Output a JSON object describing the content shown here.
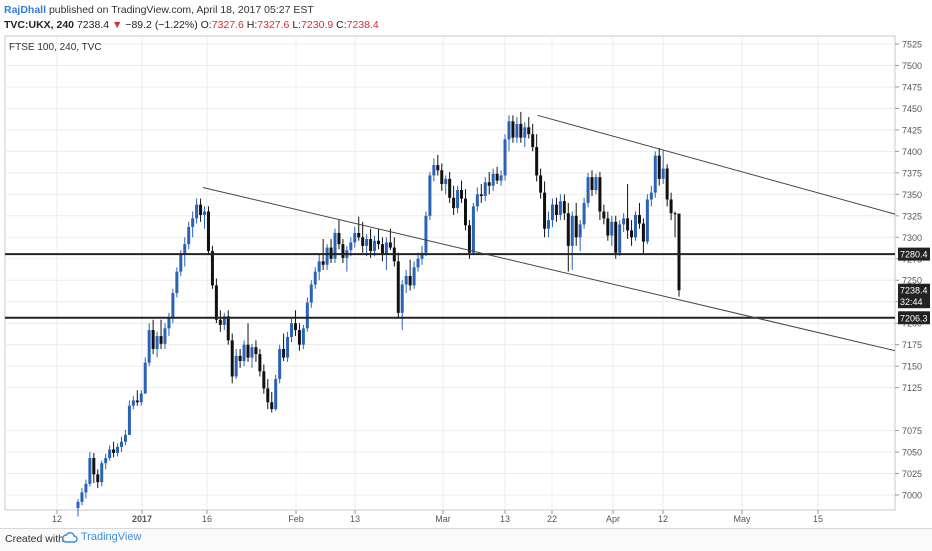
{
  "header": {
    "author": "RajDhall",
    "published": "published on TradingView.com, April 18, 2017 05:27 EST"
  },
  "quote": {
    "symbol": "TVC:UKX, 240",
    "last": "7238.4",
    "change": "−89.2 (−1.22%)",
    "open_label": "O:",
    "open": "7327.6",
    "high_label": "H:",
    "high": "7327.6",
    "low_label": "L:",
    "low": "7230.9",
    "close_label": "C:",
    "close": "7238.4"
  },
  "chart_title": "FTSE 100, 240, TVC",
  "footer": {
    "created_with": "Created with",
    "brand": "TradingView"
  },
  "colors": {
    "up": "#2a62b8",
    "down": "#111111",
    "line": "#222222",
    "label_bg": "#222222"
  },
  "chart_data": {
    "type": "candlestick",
    "title": "FTSE 100, 240, TVC",
    "ylim": [
      6988,
      7537
    ],
    "y_ticks": [
      7000,
      7025,
      7050,
      7075,
      7125,
      7150,
      7175,
      7200,
      7225,
      7250,
      7275,
      7300,
      7325,
      7350,
      7375,
      7400,
      7425,
      7450,
      7475,
      7500,
      7525
    ],
    "x_ticks": [
      "12",
      "2017",
      "16",
      "Feb",
      "13",
      "Mar",
      "13",
      "22",
      "Apr",
      "12",
      "May",
      "15"
    ],
    "horizontal_lines": [
      {
        "label": "7280.4",
        "value": 7280.4
      },
      {
        "label": "7206.3",
        "value": 7206.3
      }
    ],
    "price_labels": [
      {
        "label": "7238.4",
        "value": 7238.4
      },
      {
        "label": "32:44",
        "value": 7225
      }
    ],
    "trendlines": [
      {
        "from": [
          "Jan 13",
          7358
        ],
        "to": [
          "May 31",
          7168
        ]
      },
      {
        "from": [
          "Mar 20",
          7442
        ],
        "to": [
          "May 31",
          7327
        ]
      }
    ],
    "candles": [
      {
        "t": "Dec 28",
        "o": 6985,
        "h": 6995,
        "l": 6975,
        "c": 6992
      },
      {
        "t": "Dec 28",
        "o": 6992,
        "h": 7008,
        "l": 6988,
        "c": 7003
      },
      {
        "t": "Dec 29",
        "o": 7003,
        "h": 7018,
        "l": 6996,
        "c": 7013
      },
      {
        "t": "Dec 29",
        "o": 7013,
        "h": 7050,
        "l": 7010,
        "c": 7043
      },
      {
        "t": "Dec 30",
        "o": 7043,
        "h": 7049,
        "l": 7014,
        "c": 7024
      },
      {
        "t": "Dec 30",
        "o": 7024,
        "h": 7030,
        "l": 7008,
        "c": 7015
      },
      {
        "t": "Jan 2",
        "o": 7015,
        "h": 7040,
        "l": 7010,
        "c": 7037
      },
      {
        "t": "Jan 2",
        "o": 7037,
        "h": 7048,
        "l": 7030,
        "c": 7043
      },
      {
        "t": "Jan 3",
        "o": 7043,
        "h": 7058,
        "l": 7040,
        "c": 7053
      },
      {
        "t": "Jan 3",
        "o": 7053,
        "h": 7062,
        "l": 7044,
        "c": 7049
      },
      {
        "t": "Jan 4",
        "o": 7049,
        "h": 7060,
        "l": 7045,
        "c": 7056
      },
      {
        "t": "Jan 4",
        "o": 7056,
        "h": 7068,
        "l": 7050,
        "c": 7062
      },
      {
        "t": "Jan 5",
        "o": 7062,
        "h": 7076,
        "l": 7058,
        "c": 7070
      },
      {
        "t": "Jan 5",
        "o": 7070,
        "h": 7110,
        "l": 7070,
        "c": 7104
      },
      {
        "t": "Jan 6",
        "o": 7104,
        "h": 7115,
        "l": 7100,
        "c": 7110
      },
      {
        "t": "Jan 6",
        "o": 7110,
        "h": 7122,
        "l": 7104,
        "c": 7108
      },
      {
        "t": "Jan 9",
        "o": 7108,
        "h": 7122,
        "l": 7104,
        "c": 7118
      },
      {
        "t": "Jan 9",
        "o": 7118,
        "h": 7160,
        "l": 7118,
        "c": 7154
      },
      {
        "t": "Jan 10",
        "o": 7154,
        "h": 7200,
        "l": 7150,
        "c": 7192
      },
      {
        "t": "Jan 10",
        "o": 7192,
        "h": 7204,
        "l": 7164,
        "c": 7170
      },
      {
        "t": "Jan 11",
        "o": 7170,
        "h": 7190,
        "l": 7160,
        "c": 7185
      },
      {
        "t": "Jan 11",
        "o": 7185,
        "h": 7204,
        "l": 7170,
        "c": 7176
      },
      {
        "t": "Jan 12",
        "o": 7176,
        "h": 7200,
        "l": 7170,
        "c": 7194
      },
      {
        "t": "Jan 12",
        "o": 7194,
        "h": 7212,
        "l": 7185,
        "c": 7206
      },
      {
        "t": "Jan 13",
        "o": 7206,
        "h": 7240,
        "l": 7200,
        "c": 7235
      },
      {
        "t": "Jan 13",
        "o": 7235,
        "h": 7265,
        "l": 7230,
        "c": 7260
      },
      {
        "t": "Jan 16",
        "o": 7260,
        "h": 7285,
        "l": 7255,
        "c": 7280
      },
      {
        "t": "Jan 16",
        "o": 7280,
        "h": 7300,
        "l": 7266,
        "c": 7292
      },
      {
        "t": "Jan 17",
        "o": 7292,
        "h": 7318,
        "l": 7286,
        "c": 7312
      },
      {
        "t": "Jan 17",
        "o": 7312,
        "h": 7330,
        "l": 7300,
        "c": 7322
      },
      {
        "t": "Jan 18",
        "o": 7322,
        "h": 7345,
        "l": 7316,
        "c": 7338
      },
      {
        "t": "Jan 18",
        "o": 7338,
        "h": 7345,
        "l": 7318,
        "c": 7326
      },
      {
        "t": "Jan 19",
        "o": 7326,
        "h": 7336,
        "l": 7310,
        "c": 7330
      },
      {
        "t": "Jan 19",
        "o": 7330,
        "h": 7336,
        "l": 7280,
        "c": 7284
      },
      {
        "t": "Jan 20",
        "o": 7284,
        "h": 7290,
        "l": 7240,
        "c": 7244
      },
      {
        "t": "Jan 20",
        "o": 7244,
        "h": 7252,
        "l": 7200,
        "c": 7204
      },
      {
        "t": "Jan 23",
        "o": 7204,
        "h": 7215,
        "l": 7190,
        "c": 7198
      },
      {
        "t": "Jan 23",
        "o": 7198,
        "h": 7212,
        "l": 7192,
        "c": 7208
      },
      {
        "t": "Jan 24",
        "o": 7208,
        "h": 7215,
        "l": 7175,
        "c": 7180
      },
      {
        "t": "Jan 24",
        "o": 7180,
        "h": 7188,
        "l": 7130,
        "c": 7138
      },
      {
        "t": "Jan 25",
        "o": 7138,
        "h": 7170,
        "l": 7135,
        "c": 7162
      },
      {
        "t": "Jan 25",
        "o": 7162,
        "h": 7170,
        "l": 7148,
        "c": 7156
      },
      {
        "t": "Jan 26",
        "o": 7156,
        "h": 7180,
        "l": 7150,
        "c": 7175
      },
      {
        "t": "Jan 26",
        "o": 7175,
        "h": 7200,
        "l": 7155,
        "c": 7160
      },
      {
        "t": "Jan 27",
        "o": 7160,
        "h": 7176,
        "l": 7148,
        "c": 7172
      },
      {
        "t": "Jan 27",
        "o": 7172,
        "h": 7180,
        "l": 7155,
        "c": 7164
      },
      {
        "t": "Jan 30",
        "o": 7164,
        "h": 7170,
        "l": 7138,
        "c": 7144
      },
      {
        "t": "Jan 30",
        "o": 7144,
        "h": 7152,
        "l": 7118,
        "c": 7124
      },
      {
        "t": "Jan 31",
        "o": 7124,
        "h": 7135,
        "l": 7100,
        "c": 7108
      },
      {
        "t": "Jan 31",
        "o": 7108,
        "h": 7120,
        "l": 7096,
        "c": 7100
      },
      {
        "t": "Feb 1",
        "o": 7100,
        "h": 7140,
        "l": 7098,
        "c": 7135
      },
      {
        "t": "Feb 1",
        "o": 7135,
        "h": 7175,
        "l": 7130,
        "c": 7170
      },
      {
        "t": "Feb 2",
        "o": 7170,
        "h": 7188,
        "l": 7156,
        "c": 7160
      },
      {
        "t": "Feb 2",
        "o": 7160,
        "h": 7190,
        "l": 7155,
        "c": 7184
      },
      {
        "t": "Feb 3",
        "o": 7184,
        "h": 7205,
        "l": 7178,
        "c": 7200
      },
      {
        "t": "Feb 3",
        "o": 7200,
        "h": 7215,
        "l": 7185,
        "c": 7192
      },
      {
        "t": "Feb 6",
        "o": 7192,
        "h": 7200,
        "l": 7168,
        "c": 7175
      },
      {
        "t": "Feb 6",
        "o": 7175,
        "h": 7198,
        "l": 7170,
        "c": 7194
      },
      {
        "t": "Feb 7",
        "o": 7194,
        "h": 7230,
        "l": 7190,
        "c": 7224
      },
      {
        "t": "Feb 7",
        "o": 7224,
        "h": 7250,
        "l": 7218,
        "c": 7245
      },
      {
        "t": "Feb 8",
        "o": 7245,
        "h": 7265,
        "l": 7240,
        "c": 7260
      },
      {
        "t": "Feb 8",
        "o": 7260,
        "h": 7280,
        "l": 7250,
        "c": 7272
      },
      {
        "t": "Feb 9",
        "o": 7272,
        "h": 7298,
        "l": 7262,
        "c": 7268
      },
      {
        "t": "Feb 9",
        "o": 7268,
        "h": 7292,
        "l": 7262,
        "c": 7288
      },
      {
        "t": "Feb 10",
        "o": 7288,
        "h": 7298,
        "l": 7270,
        "c": 7275
      },
      {
        "t": "Feb 10",
        "o": 7275,
        "h": 7310,
        "l": 7270,
        "c": 7305
      },
      {
        "t": "Feb 13",
        "o": 7305,
        "h": 7320,
        "l": 7286,
        "c": 7292
      },
      {
        "t": "Feb 13",
        "o": 7292,
        "h": 7298,
        "l": 7270,
        "c": 7276
      },
      {
        "t": "Feb 14",
        "o": 7276,
        "h": 7290,
        "l": 7260,
        "c": 7285
      },
      {
        "t": "Feb 14",
        "o": 7285,
        "h": 7300,
        "l": 7278,
        "c": 7294
      },
      {
        "t": "Feb 15",
        "o": 7294,
        "h": 7312,
        "l": 7288,
        "c": 7305
      },
      {
        "t": "Feb 15",
        "o": 7305,
        "h": 7324,
        "l": 7296,
        "c": 7300
      },
      {
        "t": "Feb 16",
        "o": 7300,
        "h": 7318,
        "l": 7282,
        "c": 7290
      },
      {
        "t": "Feb 16",
        "o": 7290,
        "h": 7304,
        "l": 7278,
        "c": 7298
      },
      {
        "t": "Feb 17",
        "o": 7298,
        "h": 7310,
        "l": 7276,
        "c": 7284
      },
      {
        "t": "Feb 17",
        "o": 7284,
        "h": 7302,
        "l": 7278,
        "c": 7296
      },
      {
        "t": "Feb 20",
        "o": 7296,
        "h": 7310,
        "l": 7286,
        "c": 7292
      },
      {
        "t": "Feb 20",
        "o": 7292,
        "h": 7300,
        "l": 7272,
        "c": 7280
      },
      {
        "t": "Feb 21",
        "o": 7280,
        "h": 7300,
        "l": 7262,
        "c": 7294
      },
      {
        "t": "Feb 21",
        "o": 7294,
        "h": 7310,
        "l": 7285,
        "c": 7288
      },
      {
        "t": "Feb 22",
        "o": 7288,
        "h": 7300,
        "l": 7266,
        "c": 7272
      },
      {
        "t": "Feb 22",
        "o": 7272,
        "h": 7282,
        "l": 7206,
        "c": 7212
      },
      {
        "t": "Feb 23",
        "o": 7212,
        "h": 7250,
        "l": 7192,
        "c": 7245
      },
      {
        "t": "Feb 23",
        "o": 7245,
        "h": 7262,
        "l": 7235,
        "c": 7255
      },
      {
        "t": "Feb 24",
        "o": 7255,
        "h": 7274,
        "l": 7238,
        "c": 7244
      },
      {
        "t": "Feb 24",
        "o": 7244,
        "h": 7272,
        "l": 7240,
        "c": 7265
      },
      {
        "t": "Feb 27",
        "o": 7265,
        "h": 7282,
        "l": 7260,
        "c": 7275
      },
      {
        "t": "Feb 27",
        "o": 7275,
        "h": 7290,
        "l": 7268,
        "c": 7282
      },
      {
        "t": "Feb 28",
        "o": 7282,
        "h": 7330,
        "l": 7278,
        "c": 7325
      },
      {
        "t": "Feb 28",
        "o": 7325,
        "h": 7376,
        "l": 7320,
        "c": 7372
      },
      {
        "t": "Mar 1",
        "o": 7372,
        "h": 7392,
        "l": 7365,
        "c": 7384
      },
      {
        "t": "Mar 1",
        "o": 7384,
        "h": 7396,
        "l": 7372,
        "c": 7378
      },
      {
        "t": "Mar 2",
        "o": 7378,
        "h": 7386,
        "l": 7354,
        "c": 7362
      },
      {
        "t": "Mar 2",
        "o": 7362,
        "h": 7372,
        "l": 7350,
        "c": 7368
      },
      {
        "t": "Mar 3",
        "o": 7368,
        "h": 7376,
        "l": 7340,
        "c": 7346
      },
      {
        "t": "Mar 3",
        "o": 7346,
        "h": 7360,
        "l": 7326,
        "c": 7334
      },
      {
        "t": "Mar 6",
        "o": 7334,
        "h": 7360,
        "l": 7328,
        "c": 7355
      },
      {
        "t": "Mar 6",
        "o": 7355,
        "h": 7366,
        "l": 7340,
        "c": 7345
      },
      {
        "t": "Mar 7",
        "o": 7345,
        "h": 7356,
        "l": 7308,
        "c": 7314
      },
      {
        "t": "Mar 7",
        "o": 7314,
        "h": 7320,
        "l": 7275,
        "c": 7282
      },
      {
        "t": "Mar 8",
        "o": 7282,
        "h": 7340,
        "l": 7280,
        "c": 7336
      },
      {
        "t": "Mar 8",
        "o": 7336,
        "h": 7358,
        "l": 7330,
        "c": 7350
      },
      {
        "t": "Mar 9",
        "o": 7350,
        "h": 7362,
        "l": 7340,
        "c": 7348
      },
      {
        "t": "Mar 9",
        "o": 7348,
        "h": 7370,
        "l": 7342,
        "c": 7364
      },
      {
        "t": "Mar 10",
        "o": 7364,
        "h": 7376,
        "l": 7350,
        "c": 7360
      },
      {
        "t": "Mar 10",
        "o": 7360,
        "h": 7380,
        "l": 7354,
        "c": 7374
      },
      {
        "t": "Mar 13",
        "o": 7374,
        "h": 7382,
        "l": 7362,
        "c": 7366
      },
      {
        "t": "Mar 13",
        "o": 7366,
        "h": 7378,
        "l": 7360,
        "c": 7372
      },
      {
        "t": "Mar 14",
        "o": 7372,
        "h": 7420,
        "l": 7366,
        "c": 7414
      },
      {
        "t": "Mar 14",
        "o": 7414,
        "h": 7442,
        "l": 7400,
        "c": 7435
      },
      {
        "t": "Mar 15",
        "o": 7435,
        "h": 7442,
        "l": 7410,
        "c": 7416
      },
      {
        "t": "Mar 15",
        "o": 7416,
        "h": 7440,
        "l": 7410,
        "c": 7432
      },
      {
        "t": "Mar 16",
        "o": 7432,
        "h": 7446,
        "l": 7410,
        "c": 7416
      },
      {
        "t": "Mar 16",
        "o": 7416,
        "h": 7434,
        "l": 7405,
        "c": 7428
      },
      {
        "t": "Mar 17",
        "o": 7428,
        "h": 7440,
        "l": 7415,
        "c": 7420
      },
      {
        "t": "Mar 17",
        "o": 7420,
        "h": 7432,
        "l": 7400,
        "c": 7405
      },
      {
        "t": "Mar 20",
        "o": 7405,
        "h": 7420,
        "l": 7365,
        "c": 7372
      },
      {
        "t": "Mar 20",
        "o": 7372,
        "h": 7380,
        "l": 7345,
        "c": 7352
      },
      {
        "t": "Mar 21",
        "o": 7352,
        "h": 7365,
        "l": 7300,
        "c": 7310
      },
      {
        "t": "Mar 21",
        "o": 7310,
        "h": 7330,
        "l": 7300,
        "c": 7320
      },
      {
        "t": "Mar 22",
        "o": 7320,
        "h": 7345,
        "l": 7312,
        "c": 7338
      },
      {
        "t": "Mar 22",
        "o": 7338,
        "h": 7346,
        "l": 7318,
        "c": 7326
      },
      {
        "t": "Mar 23",
        "o": 7326,
        "h": 7350,
        "l": 7320,
        "c": 7342
      },
      {
        "t": "Mar 23",
        "o": 7342,
        "h": 7350,
        "l": 7320,
        "c": 7328
      },
      {
        "t": "Mar 24",
        "o": 7328,
        "h": 7340,
        "l": 7260,
        "c": 7290
      },
      {
        "t": "Mar 24",
        "o": 7290,
        "h": 7330,
        "l": 7262,
        "c": 7325
      },
      {
        "t": "Mar 27",
        "o": 7325,
        "h": 7340,
        "l": 7290,
        "c": 7300
      },
      {
        "t": "Mar 27",
        "o": 7300,
        "h": 7320,
        "l": 7284,
        "c": 7315
      },
      {
        "t": "Mar 28",
        "o": 7315,
        "h": 7346,
        "l": 7310,
        "c": 7340
      },
      {
        "t": "Mar 28",
        "o": 7340,
        "h": 7375,
        "l": 7335,
        "c": 7370
      },
      {
        "t": "Mar 29",
        "o": 7370,
        "h": 7378,
        "l": 7348,
        "c": 7355
      },
      {
        "t": "Mar 29",
        "o": 7355,
        "h": 7374,
        "l": 7350,
        "c": 7370
      },
      {
        "t": "Mar 30",
        "o": 7370,
        "h": 7376,
        "l": 7320,
        "c": 7330
      },
      {
        "t": "Mar 30",
        "o": 7330,
        "h": 7338,
        "l": 7315,
        "c": 7322
      },
      {
        "t": "Mar 31",
        "o": 7322,
        "h": 7330,
        "l": 7296,
        "c": 7302
      },
      {
        "t": "Mar 31",
        "o": 7302,
        "h": 7325,
        "l": 7290,
        "c": 7318
      },
      {
        "t": "Apr 3",
        "o": 7318,
        "h": 7325,
        "l": 7275,
        "c": 7282
      },
      {
        "t": "Apr 3",
        "o": 7282,
        "h": 7320,
        "l": 7278,
        "c": 7315
      },
      {
        "t": "Apr 4",
        "o": 7315,
        "h": 7328,
        "l": 7306,
        "c": 7322
      },
      {
        "t": "Apr 4",
        "o": 7322,
        "h": 7362,
        "l": 7298,
        "c": 7308
      },
      {
        "t": "Apr 5",
        "o": 7308,
        "h": 7320,
        "l": 7290,
        "c": 7300
      },
      {
        "t": "Apr 5",
        "o": 7300,
        "h": 7330,
        "l": 7296,
        "c": 7326
      },
      {
        "t": "Apr 6",
        "o": 7326,
        "h": 7340,
        "l": 7310,
        "c": 7316
      },
      {
        "t": "Apr 6",
        "o": 7316,
        "h": 7322,
        "l": 7280,
        "c": 7295
      },
      {
        "t": "Apr 7",
        "o": 7295,
        "h": 7350,
        "l": 7292,
        "c": 7344
      },
      {
        "t": "Apr 7",
        "o": 7344,
        "h": 7360,
        "l": 7336,
        "c": 7352
      },
      {
        "t": "Apr 10",
        "o": 7352,
        "h": 7400,
        "l": 7346,
        "c": 7395
      },
      {
        "t": "Apr 10",
        "o": 7395,
        "h": 7404,
        "l": 7360,
        "c": 7368
      },
      {
        "t": "Apr 11",
        "o": 7368,
        "h": 7402,
        "l": 7362,
        "c": 7380
      },
      {
        "t": "Apr 11",
        "o": 7380,
        "h": 7385,
        "l": 7336,
        "c": 7344
      },
      {
        "t": "Apr 12",
        "o": 7344,
        "h": 7352,
        "l": 7320,
        "c": 7328
      },
      {
        "t": "Apr 13",
        "o": 7328,
        "h": 7330,
        "l": 7300,
        "c": 7327.6
      },
      {
        "t": "Apr 18",
        "o": 7327.6,
        "h": 7327.6,
        "l": 7230.9,
        "c": 7238.4
      }
    ]
  }
}
